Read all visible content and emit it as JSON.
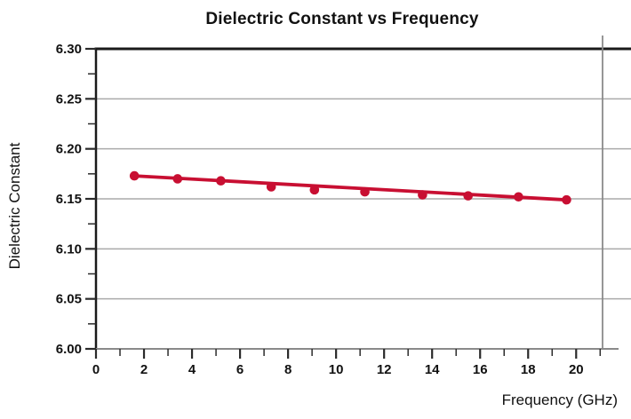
{
  "chart_data": {
    "type": "scatter",
    "title": "Dielectric Constant vs Frequency",
    "xlabel": "Frequency (GHz)",
    "ylabel": "Dielectric Constant",
    "x": [
      1.6,
      3.4,
      5.2,
      7.3,
      9.1,
      11.2,
      13.6,
      15.5,
      17.6,
      19.6
    ],
    "y": [
      6.173,
      6.17,
      6.168,
      6.162,
      6.159,
      6.157,
      6.154,
      6.153,
      6.152,
      6.149
    ],
    "trendline": {
      "x1": 1.6,
      "y1": 6.173,
      "x2": 19.6,
      "y2": 6.149
    },
    "xlim": [
      0,
      21.1
    ],
    "ylim": [
      6.0,
      6.3
    ],
    "x_ticks": {
      "major": [
        {
          "v": 0,
          "label": "0"
        },
        {
          "v": 2,
          "label": "2"
        },
        {
          "v": 4,
          "label": "4"
        },
        {
          "v": 6,
          "label": "6"
        },
        {
          "v": 8,
          "label": "8"
        },
        {
          "v": 10,
          "label": "10"
        },
        {
          "v": 12,
          "label": "12"
        },
        {
          "v": 14,
          "label": "14"
        },
        {
          "v": 16,
          "label": "16"
        },
        {
          "v": 18,
          "label": "18"
        },
        {
          "v": 20,
          "label": "20"
        }
      ],
      "minor": [
        1,
        3,
        5,
        7,
        9,
        11,
        13,
        15,
        17,
        19,
        21
      ]
    },
    "y_ticks": {
      "major": [
        {
          "v": 6.0,
          "label": "6.00"
        },
        {
          "v": 6.05,
          "label": "6.05"
        },
        {
          "v": 6.1,
          "label": "6.10"
        },
        {
          "v": 6.15,
          "label": "6.15"
        },
        {
          "v": 6.2,
          "label": "6.20"
        },
        {
          "v": 6.25,
          "label": "6.25"
        },
        {
          "v": 6.3,
          "label": "6.30"
        }
      ],
      "minor": [
        6.025,
        6.075,
        6.125,
        6.175,
        6.225,
        6.275
      ]
    },
    "grid": "horizontal-major",
    "legend": "none",
    "colors": {
      "series": "#C80F32",
      "grid": "#aaaaaa",
      "axis_dark": "#1a1a1a",
      "axis_gray": "#8a8a8a",
      "tick": "#2b2b2b",
      "text": "#111111",
      "background": "#ffffff"
    }
  }
}
